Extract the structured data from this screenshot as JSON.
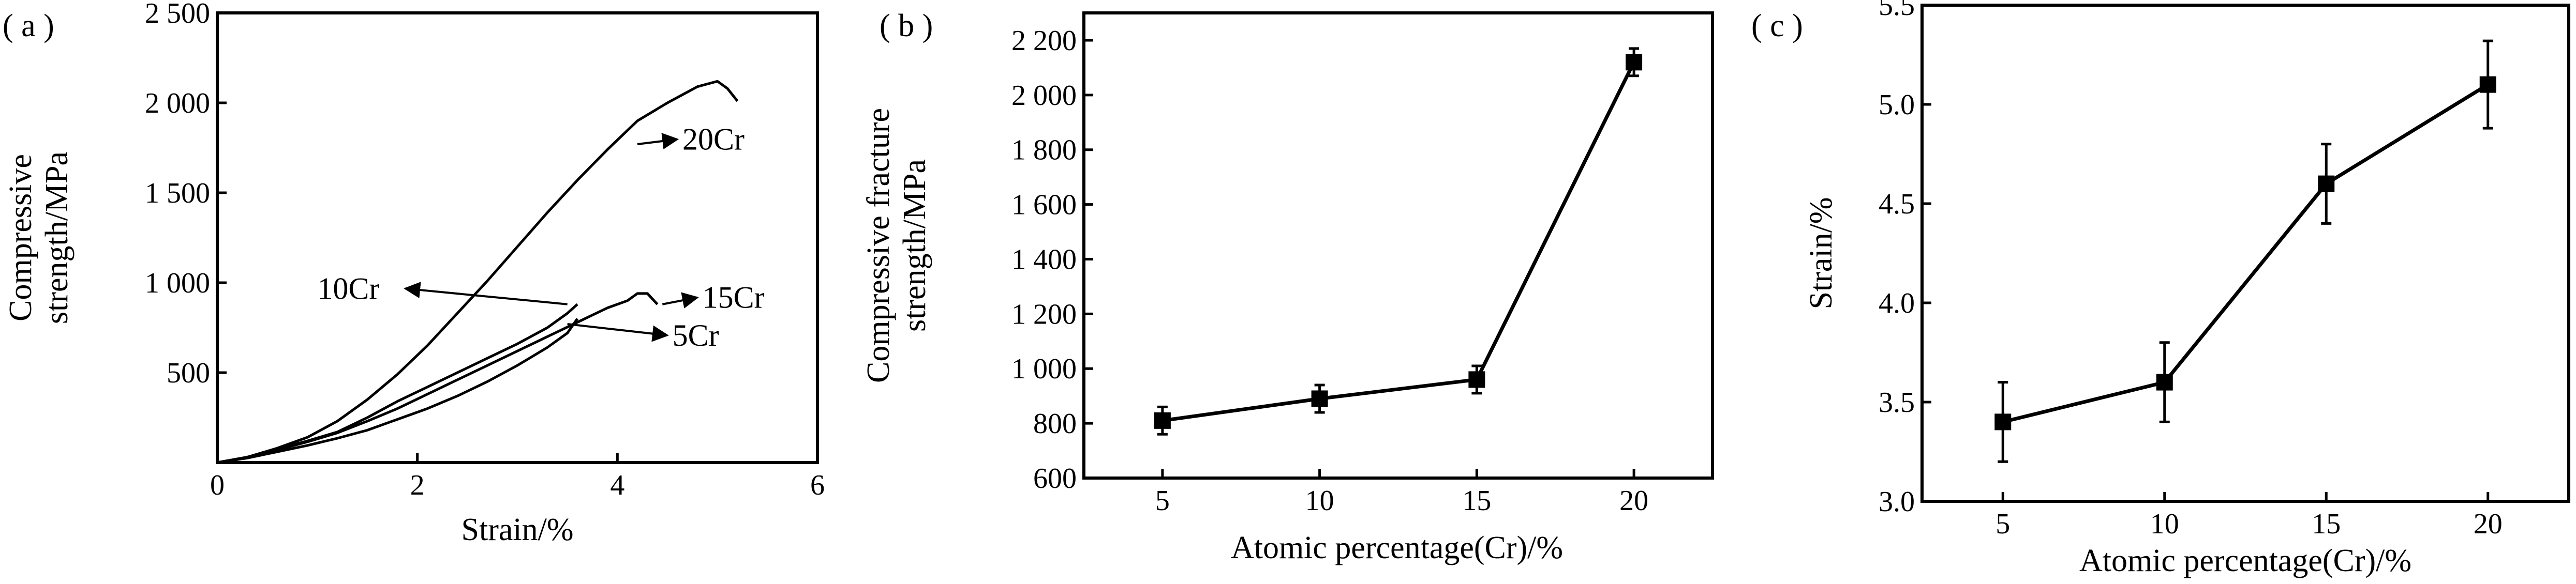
{
  "chart_data": [
    {
      "panel_label": "( a )",
      "type": "line",
      "xlabel": "Strain/%",
      "ylabel_lines": [
        "Compressive",
        "strength/MPa"
      ],
      "xlim": [
        0,
        6
      ],
      "ylim": [
        0,
        2500
      ],
      "x_ticks": [
        0,
        2,
        4,
        6
      ],
      "x_tick_labels": [
        "0",
        "2",
        "4",
        "6"
      ],
      "y_ticks": [
        500,
        1000,
        1500,
        2000,
        2500
      ],
      "y_tick_labels": [
        "500",
        "1 000",
        "1 500",
        "2 000",
        "2 500"
      ],
      "grid": false,
      "series": [
        {
          "name": "20Cr",
          "x": [
            0,
            0.3,
            0.6,
            0.9,
            1.2,
            1.5,
            1.8,
            2.1,
            2.4,
            2.7,
            3.0,
            3.3,
            3.6,
            3.9,
            4.2,
            4.5,
            4.8,
            5.0,
            5.1,
            5.2
          ],
          "y": [
            0,
            30,
            80,
            140,
            230,
            350,
            490,
            650,
            830,
            1010,
            1200,
            1390,
            1570,
            1740,
            1900,
            2000,
            2090,
            2120,
            2080,
            2010
          ]
        },
        {
          "name": "10Cr",
          "x": [
            0,
            0.3,
            0.6,
            0.9,
            1.2,
            1.5,
            1.8,
            2.1,
            2.4,
            2.7,
            3.0,
            3.3,
            3.5,
            3.6
          ],
          "y": [
            0,
            30,
            75,
            120,
            170,
            250,
            340,
            420,
            500,
            580,
            660,
            750,
            830,
            880
          ]
        },
        {
          "name": "15Cr",
          "x": [
            0,
            0.3,
            0.6,
            0.9,
            1.2,
            1.5,
            1.8,
            2.1,
            2.4,
            2.7,
            3.0,
            3.3,
            3.6,
            3.9,
            4.1,
            4.2,
            4.3,
            4.4
          ],
          "y": [
            0,
            30,
            70,
            115,
            165,
            230,
            300,
            380,
            460,
            540,
            620,
            700,
            780,
            860,
            900,
            940,
            940,
            880
          ]
        },
        {
          "name": "5Cr",
          "x": [
            0,
            0.3,
            0.6,
            0.9,
            1.2,
            1.5,
            1.8,
            2.1,
            2.4,
            2.7,
            3.0,
            3.3,
            3.5,
            3.6
          ],
          "y": [
            0,
            25,
            60,
            95,
            135,
            180,
            240,
            300,
            370,
            450,
            540,
            640,
            720,
            800
          ]
        }
      ],
      "annotations": [
        {
          "text": "20Cr",
          "series": "20Cr",
          "arrow_to_x": 4.2,
          "arrow_to_y": 1770,
          "text_x": 4.65,
          "text_y": 1740
        },
        {
          "text": "10Cr",
          "series": "10Cr",
          "arrow_to_x": 3.5,
          "arrow_to_y": 880,
          "text_x": 1.0,
          "text_y": 910
        },
        {
          "text": "15Cr",
          "series": "15Cr",
          "arrow_to_x": 4.45,
          "arrow_to_y": 880,
          "text_x": 4.85,
          "text_y": 860
        },
        {
          "text": "5Cr",
          "series": "5Cr",
          "arrow_to_x": 3.5,
          "arrow_to_y": 770,
          "text_x": 4.55,
          "text_y": 650
        }
      ]
    },
    {
      "panel_label": "( b )",
      "type": "line",
      "xlabel": "Atomic percentage(Cr)/%",
      "ylabel_lines": [
        "Compressive fracture",
        "strength/MPa"
      ],
      "xlim": [
        2.5,
        22.5
      ],
      "ylim": [
        600,
        2300
      ],
      "x_ticks": [
        5,
        10,
        15,
        20
      ],
      "x_tick_labels": [
        "5",
        "10",
        "15",
        "20"
      ],
      "y_ticks": [
        600,
        800,
        1000,
        1200,
        1400,
        1600,
        1800,
        2000,
        2200
      ],
      "y_tick_labels": [
        "600",
        "800",
        "1 000",
        "1 200",
        "1 400",
        "1 600",
        "1 800",
        "2 000",
        "2 200"
      ],
      "grid": false,
      "x": [
        5,
        10,
        15,
        20
      ],
      "y": [
        810,
        890,
        960,
        2120
      ],
      "error": [
        50,
        50,
        50,
        50
      ]
    },
    {
      "panel_label": "( c )",
      "type": "line",
      "xlabel": "Atomic percentage(Cr)/%",
      "ylabel_lines": [
        "Strain/%"
      ],
      "xlim": [
        2.5,
        22.5
      ],
      "ylim": [
        3.0,
        5.5
      ],
      "x_ticks": [
        5,
        10,
        15,
        20
      ],
      "x_tick_labels": [
        "5",
        "10",
        "15",
        "20"
      ],
      "y_ticks": [
        3.0,
        3.5,
        4.0,
        4.5,
        5.0,
        5.5
      ],
      "y_tick_labels": [
        "3.0",
        "3.5",
        "4.0",
        "4.5",
        "5.0",
        "5.5"
      ],
      "grid": false,
      "x": [
        5,
        10,
        15,
        20
      ],
      "y": [
        3.4,
        3.6,
        4.6,
        5.1
      ],
      "error": [
        0.2,
        0.2,
        0.2,
        0.22
      ]
    }
  ]
}
